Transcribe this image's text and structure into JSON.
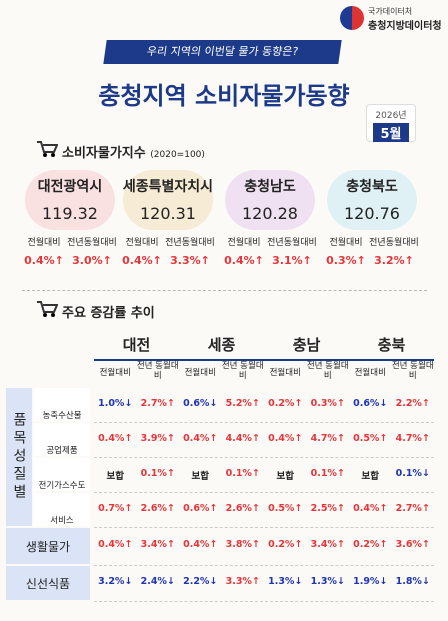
{
  "header": {
    "agency": [
      "국가데이터처",
      "충청지방데이터청"
    ],
    "banner": "우리 지역의 이번달 물가 동향은?",
    "title": "충청지역 소비자물가동향",
    "badge": {
      "year": "2026년",
      "month": "5월"
    }
  },
  "palette": {
    "up": "#e5353a",
    "down": "#1f34b5",
    "flat": "#222222"
  },
  "section1": {
    "title": "소비자물가지수",
    "note": "(2020=100)",
    "regions": [
      {
        "name": "대전광역시",
        "index": "119.32",
        "labels": [
          "전월대비",
          "전년동월대비"
        ],
        "values": [
          {
            "text": "0.4%↑",
            "dir": "up"
          },
          {
            "text": "3.0%↑",
            "dir": "up"
          }
        ]
      },
      {
        "name": "세종특별자치시",
        "index": "120.31",
        "labels": [
          "전월대비",
          "전년동월대비"
        ],
        "values": [
          {
            "text": "0.4%↑",
            "dir": "up"
          },
          {
            "text": "3.3%↑",
            "dir": "up"
          }
        ]
      },
      {
        "name": "충청남도",
        "index": "120.28",
        "labels": [
          "전월대비",
          "전년동월대비"
        ],
        "values": [
          {
            "text": "0.4%↑",
            "dir": "up"
          },
          {
            "text": "3.1%↑",
            "dir": "up"
          }
        ]
      },
      {
        "name": "충청북도",
        "index": "120.76",
        "labels": [
          "전월대비",
          "전년동월대비"
        ],
        "values": [
          {
            "text": "0.3%↑",
            "dir": "up"
          },
          {
            "text": "3.2%↑",
            "dir": "up"
          }
        ]
      }
    ]
  },
  "section2": {
    "title": "주요 증감률 추이",
    "columns": [
      "대전",
      "세종",
      "충남",
      "충북"
    ],
    "subheaders": [
      "전월대비",
      "전년 동월대비"
    ],
    "group": "품목성질별",
    "rows": [
      {
        "label": "농축수산물",
        "cells": [
          {
            "text": "1.0%↓",
            "dir": "down"
          },
          {
            "text": "2.7%↑",
            "dir": "up"
          },
          {
            "text": "0.6%↓",
            "dir": "down"
          },
          {
            "text": "5.2%↑",
            "dir": "up"
          },
          {
            "text": "0.2%↑",
            "dir": "up"
          },
          {
            "text": "0.3%↑",
            "dir": "up"
          },
          {
            "text": "0.6%↓",
            "dir": "down"
          },
          {
            "text": "2.2%↑",
            "dir": "up"
          }
        ]
      },
      {
        "label": "공업제품",
        "cells": [
          {
            "text": "0.4%↑",
            "dir": "up"
          },
          {
            "text": "3.9%↑",
            "dir": "up"
          },
          {
            "text": "0.4%↑",
            "dir": "up"
          },
          {
            "text": "4.4%↑",
            "dir": "up"
          },
          {
            "text": "0.4%↑",
            "dir": "up"
          },
          {
            "text": "4.7%↑",
            "dir": "up"
          },
          {
            "text": "0.5%↑",
            "dir": "up"
          },
          {
            "text": "4.7%↑",
            "dir": "up"
          }
        ]
      },
      {
        "label": "전기가스수도",
        "cells": [
          {
            "text": "보합",
            "dir": "flat"
          },
          {
            "text": "0.1%↑",
            "dir": "up"
          },
          {
            "text": "보합",
            "dir": "flat"
          },
          {
            "text": "0.1%↑",
            "dir": "up"
          },
          {
            "text": "보합",
            "dir": "flat"
          },
          {
            "text": "0.1%↑",
            "dir": "up"
          },
          {
            "text": "보합",
            "dir": "flat"
          },
          {
            "text": "0.1%↓",
            "dir": "down"
          }
        ]
      },
      {
        "label": "서비스",
        "cells": [
          {
            "text": "0.7%↑",
            "dir": "up"
          },
          {
            "text": "2.6%↑",
            "dir": "up"
          },
          {
            "text": "0.6%↑",
            "dir": "up"
          },
          {
            "text": "2.6%↑",
            "dir": "up"
          },
          {
            "text": "0.5%↑",
            "dir": "up"
          },
          {
            "text": "2.5%↑",
            "dir": "up"
          },
          {
            "text": "0.4%↑",
            "dir": "up"
          },
          {
            "text": "2.7%↑",
            "dir": "up"
          }
        ]
      },
      {
        "label": "생활물가",
        "cells": [
          {
            "text": "0.4%↑",
            "dir": "up"
          },
          {
            "text": "3.4%↑",
            "dir": "up"
          },
          {
            "text": "0.4%↑",
            "dir": "up"
          },
          {
            "text": "3.8%↑",
            "dir": "up"
          },
          {
            "text": "0.2%↑",
            "dir": "up"
          },
          {
            "text": "3.4%↑",
            "dir": "up"
          },
          {
            "text": "0.2%↑",
            "dir": "up"
          },
          {
            "text": "3.6%↑",
            "dir": "up"
          }
        ]
      },
      {
        "label": "신선식품",
        "cells": [
          {
            "text": "3.2%↓",
            "dir": "down"
          },
          {
            "text": "2.4%↓",
            "dir": "down"
          },
          {
            "text": "2.2%↓",
            "dir": "down"
          },
          {
            "text": "3.3%↑",
            "dir": "up"
          },
          {
            "text": "1.3%↓",
            "dir": "down"
          },
          {
            "text": "1.3%↓",
            "dir": "down"
          },
          {
            "text": "1.9%↓",
            "dir": "down"
          },
          {
            "text": "1.8%↓",
            "dir": "down"
          }
        ]
      }
    ]
  }
}
